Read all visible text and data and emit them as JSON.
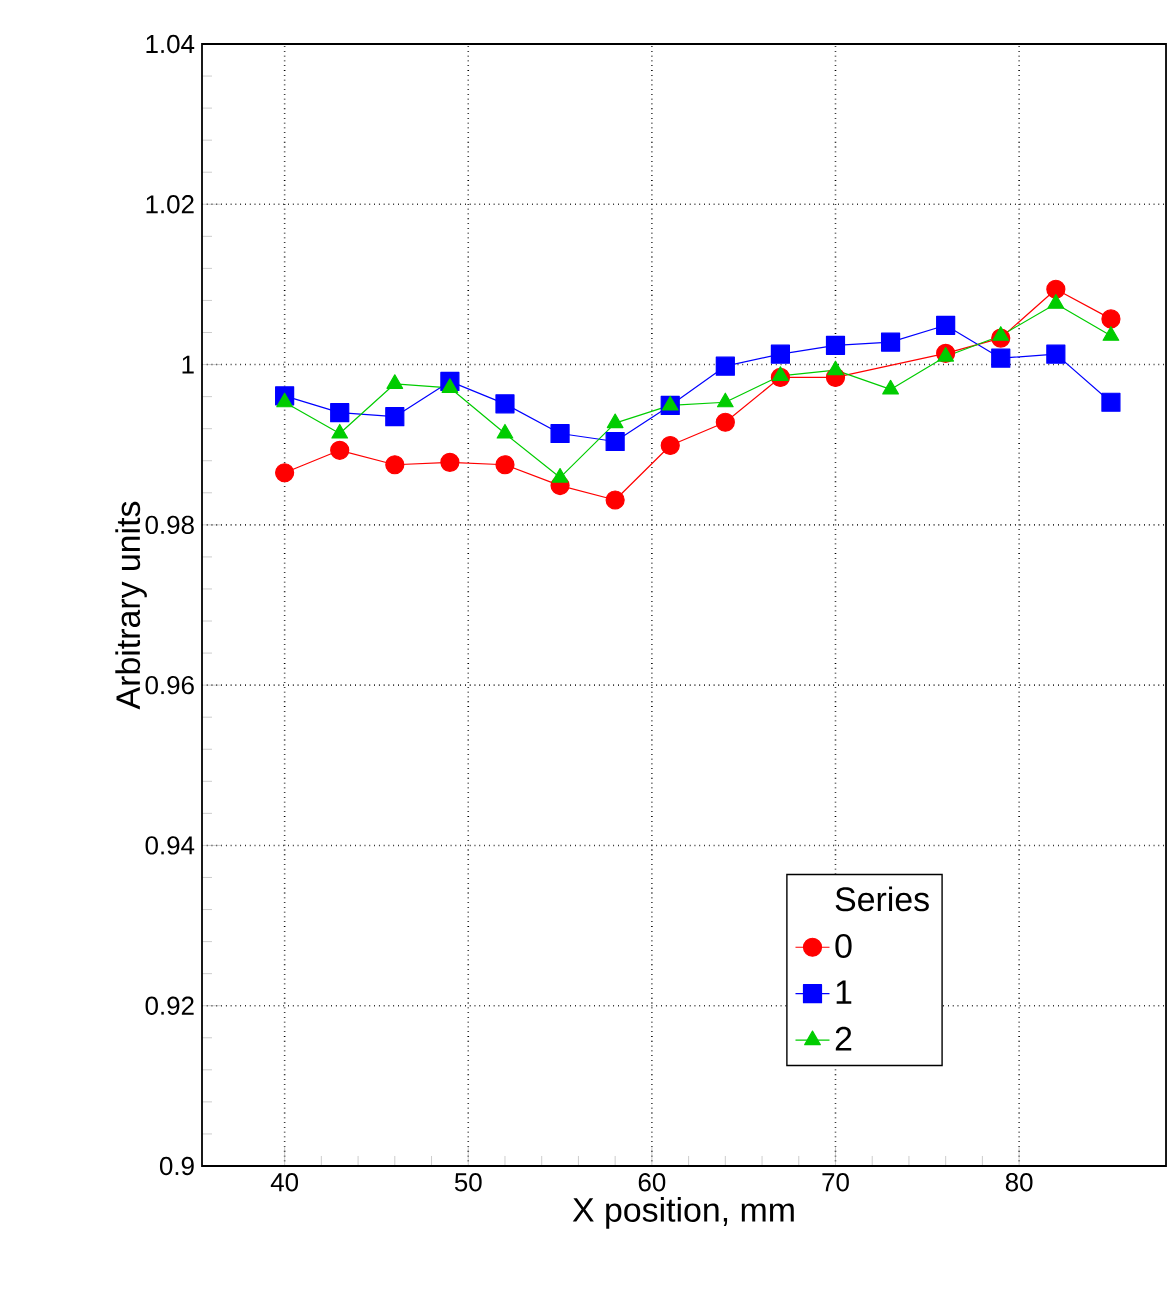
{
  "chart_data": {
    "type": "line",
    "xlabel": "X position, mm",
    "ylabel": "Arbitrary units",
    "legend_title": "Series",
    "x": [
      40,
      43,
      46,
      49,
      52,
      55,
      58,
      61,
      64,
      67,
      70,
      73,
      76,
      79,
      82,
      85
    ],
    "series": [
      {
        "name": "0",
        "color": "#ff0000",
        "marker": "circle",
        "values": [
          0.9865,
          0.9893,
          0.9875,
          0.9878,
          0.9875,
          0.9849,
          0.9831,
          0.9899,
          0.9928,
          0.9984,
          0.9984,
          null,
          1.0014,
          1.0033,
          1.0094,
          1.0057
        ]
      },
      {
        "name": "1",
        "color": "#0000ff",
        "marker": "square",
        "values": [
          0.9961,
          0.994,
          0.9935,
          0.9979,
          0.9951,
          0.9914,
          0.9904,
          0.9949,
          0.9998,
          1.0013,
          1.0024,
          1.0028,
          1.0049,
          1.0008,
          1.0013,
          0.9953
        ]
      },
      {
        "name": "2",
        "color": "#00cc00",
        "marker": "triangle",
        "values": [
          0.9953,
          0.9914,
          0.9976,
          0.9971,
          0.9914,
          0.9859,
          0.9927,
          0.9949,
          0.9953,
          0.9986,
          0.9993,
          0.9969,
          1.001,
          1.0036,
          1.0076,
          1.0036
        ]
      }
    ],
    "xlim": [
      35.5,
      88
    ],
    "ylim": [
      0.9,
      1.04
    ],
    "xticks": [
      40,
      50,
      60,
      70,
      80
    ],
    "yticks": [
      {
        "value": 0.9,
        "label": "0.9"
      },
      {
        "value": 0.92,
        "label": "0.92"
      },
      {
        "value": 0.94,
        "label": "0.94"
      },
      {
        "value": 0.96,
        "label": "0.96"
      },
      {
        "value": 0.98,
        "label": "0.98"
      },
      {
        "value": 1,
        "label": "1"
      },
      {
        "value": 1.02,
        "label": "1.02"
      },
      {
        "value": 1.04,
        "label": "1.04"
      }
    ],
    "grid": true,
    "legend": "bottom right",
    "line_style": "solid"
  }
}
